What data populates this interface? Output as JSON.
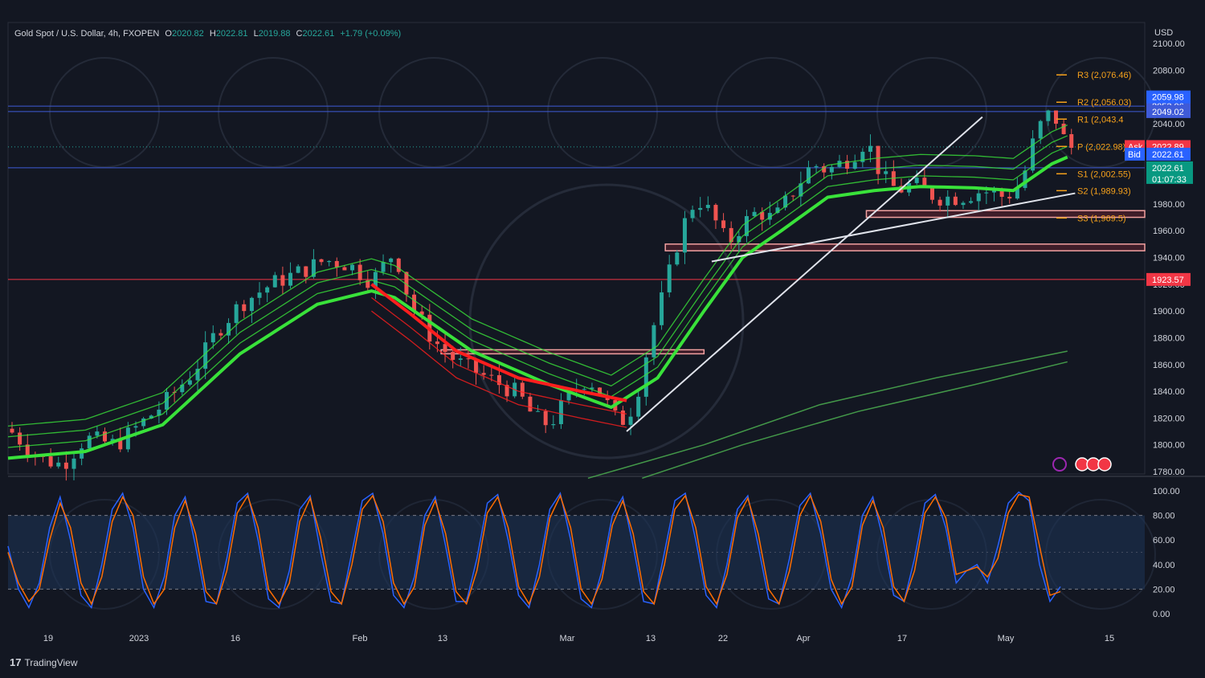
{
  "header": {
    "symbol": "Gold Spot / U.S. Dollar, 4h, FXOPEN",
    "o_label": "O",
    "o_value": "2020.82",
    "h_label": "H",
    "h_value": "2022.81",
    "l_label": "L",
    "l_value": "2019.88",
    "c_label": "C",
    "c_value": "2022.61",
    "change": "+1.79 (+0.09%)"
  },
  "currency": "USD",
  "brand": "TradingView",
  "colors": {
    "bg": "#131722",
    "up": "#26a69a",
    "down": "#ef5350",
    "green_ema": "#39e23a",
    "red_ema": "#ff1e1e",
    "pivot": "#f7a21b",
    "hline_blue": "#3f5bd8",
    "hline_red": "#f23645",
    "stoch_k": "#2962ff",
    "stoch_d": "#ff6d00",
    "stoch_band": "#1d3557"
  },
  "chart_data": [
    {
      "type": "candlestick",
      "title": "Gold Spot / U.S. Dollar, 4h, FXOPEN",
      "ylim": [
        1775,
        2105
      ],
      "y_ticks": [
        "2100.00",
        "2080.00",
        "2060.00",
        "2040.00",
        "2020.00",
        "2000.00",
        "1980.00",
        "1960.00",
        "1940.00",
        "1920.00",
        "1900.00",
        "1880.00",
        "1860.00",
        "1840.00",
        "1820.00",
        "1800.00",
        "1780.00"
      ],
      "x_ticks": [
        "19",
        "2023",
        "16",
        "Feb",
        "13",
        "Mar",
        "13",
        "22",
        "Apr",
        "17",
        "May",
        "15"
      ],
      "price_path": [
        [
          0,
          1812
        ],
        [
          4,
          1790
        ],
        [
          7,
          1785
        ],
        [
          10,
          1805
        ],
        [
          14,
          1800
        ],
        [
          17,
          1815
        ],
        [
          20,
          1830
        ],
        [
          24,
          1855
        ],
        [
          27,
          1885
        ],
        [
          30,
          1905
        ],
        [
          34,
          1920
        ],
        [
          38,
          1930
        ],
        [
          41,
          1938
        ],
        [
          44,
          1935
        ],
        [
          47,
          1922
        ],
        [
          50,
          1945
        ],
        [
          52,
          1905
        ],
        [
          55,
          1878
        ],
        [
          58,
          1862
        ],
        [
          62,
          1850
        ],
        [
          66,
          1838
        ],
        [
          68,
          1820
        ],
        [
          70,
          1815
        ],
        [
          73,
          1840
        ],
        [
          75,
          1850
        ],
        [
          77,
          1835
        ],
        [
          79,
          1815
        ],
        [
          81,
          1830
        ],
        [
          83,
          1880
        ],
        [
          85,
          1918
        ],
        [
          87,
          1960
        ],
        [
          89,
          1985
        ],
        [
          91,
          1972
        ],
        [
          93,
          1950
        ],
        [
          95,
          1965
        ],
        [
          97,
          1975
        ],
        [
          99,
          1968
        ],
        [
          101,
          1985
        ],
        [
          104,
          2010
        ],
        [
          106,
          2005
        ],
        [
          109,
          2015
        ],
        [
          111,
          2028
        ],
        [
          113,
          2000
        ],
        [
          115,
          1990
        ],
        [
          117,
          1995
        ],
        [
          120,
          1985
        ],
        [
          123,
          1985
        ],
        [
          126,
          1990
        ],
        [
          129,
          1985
        ],
        [
          131,
          1995
        ],
        [
          133,
          2035
        ],
        [
          135,
          2050
        ],
        [
          137,
          2022
        ]
      ],
      "green_ema_path": [
        [
          0,
          1790
        ],
        [
          10,
          1795
        ],
        [
          20,
          1815
        ],
        [
          30,
          1868
        ],
        [
          40,
          1905
        ],
        [
          47,
          1915
        ],
        [
          50,
          1910
        ],
        [
          60,
          1870
        ],
        [
          70,
          1845
        ],
        [
          78,
          1828
        ],
        [
          84,
          1850
        ],
        [
          90,
          1900
        ],
        [
          95,
          1940
        ],
        [
          100,
          1960
        ],
        [
          106,
          1985
        ],
        [
          112,
          1990
        ],
        [
          118,
          1993
        ],
        [
          125,
          1992
        ],
        [
          130,
          1990
        ],
        [
          135,
          2010
        ],
        [
          137,
          2015
        ]
      ],
      "red_ema_path": [
        [
          47,
          1920
        ],
        [
          52,
          1898
        ],
        [
          58,
          1870
        ],
        [
          66,
          1850
        ],
        [
          74,
          1840
        ],
        [
          80,
          1833
        ]
      ],
      "sma_paths": [
        [
          [
            75,
            1775
          ],
          [
            90,
            1800
          ],
          [
            105,
            1830
          ],
          [
            120,
            1850
          ],
          [
            137,
            1870
          ]
        ],
        [
          [
            82,
            1775
          ],
          [
            95,
            1800
          ],
          [
            110,
            1825
          ],
          [
            125,
            1845
          ],
          [
            137,
            1862
          ]
        ]
      ],
      "trendlines": [
        {
          "from": [
            80,
            1810
          ],
          "to": [
            126,
            2045
          ]
        },
        {
          "from": [
            91,
            1937
          ],
          "to": [
            138,
            1988
          ]
        }
      ],
      "zones": [
        {
          "x0": 56,
          "x1": 90,
          "y0": 1868,
          "y1": 1871
        },
        {
          "x0": 85,
          "x1": 147,
          "y0": 1945,
          "y1": 1950
        },
        {
          "x0": 111,
          "x1": 147,
          "y0": 1970,
          "y1": 1975
        }
      ],
      "horizontal_lines": [
        {
          "value": 2053.06,
          "label": "2053.06",
          "color": "#3f5bd8"
        },
        {
          "value": 2049.02,
          "label": "2049.02",
          "color": "#3f5bd8"
        },
        {
          "value": 2007.01,
          "label": "2007.01",
          "color": "#3f5bd8"
        },
        {
          "value": 1923.57,
          "label": "1923.57",
          "color": "#f23645"
        }
      ],
      "price_labels": [
        {
          "value": 2059.98,
          "label": "2059.98",
          "color": "#2962ff"
        },
        {
          "value": 2022.89,
          "label": "2022.89",
          "color": "#f23645",
          "tag": "Ask"
        },
        {
          "value": 2022.61,
          "label": "2022.61",
          "color": "#2962ff",
          "tag": "Bid"
        },
        {
          "value": 2022.61,
          "label": "2022.61",
          "color": "#089981",
          "sub": "01:07:33"
        }
      ],
      "pivots": [
        {
          "name": "R3",
          "value": 2076.46,
          "label": "R3 (2,076.46)"
        },
        {
          "name": "R2",
          "value": 2056.03,
          "label": "R2 (2,056.03)"
        },
        {
          "name": "R1",
          "value": 2043.4,
          "label": "R1 (2,043.4"
        },
        {
          "name": "P",
          "value": 2022.98,
          "label": "P (2,022.98)"
        },
        {
          "name": "S1",
          "value": 2002.55,
          "label": "S1 (2,002.55)"
        },
        {
          "name": "S2",
          "value": 1989.93,
          "label": "S2 (1,989.93)"
        },
        {
          "name": "S3",
          "value": 1969.5,
          "label": "S3 (1,969.5)"
        }
      ]
    },
    {
      "type": "line",
      "title": "",
      "ylim": [
        -5,
        105
      ],
      "y_ticks": [
        "100.00",
        "80.00",
        "60.00",
        "40.00",
        "20.00",
        "0.00"
      ],
      "bands": [
        80,
        20
      ],
      "series": [
        {
          "values": [
            55,
            20,
            5,
            25,
            70,
            95,
            60,
            15,
            5,
            40,
            85,
            98,
            70,
            20,
            5,
            30,
            80,
            95,
            55,
            10,
            8,
            45,
            90,
            98,
            60,
            12,
            5,
            35,
            85,
            96,
            50,
            10,
            8,
            50,
            92,
            98,
            65,
            15,
            5,
            30,
            80,
            95,
            55,
            10,
            10,
            45,
            90,
            97,
            60,
            15,
            5,
            40,
            85,
            98,
            60,
            12,
            5,
            35,
            80,
            95,
            55,
            10,
            8,
            50,
            92,
            98,
            60,
            15,
            5,
            40,
            85,
            96,
            55,
            12,
            8,
            45,
            88,
            98,
            65,
            20,
            5,
            30,
            80,
            95,
            60,
            15,
            10,
            45,
            90,
            97,
            70,
            25,
            35,
            40,
            25,
            55,
            90,
            99,
            92,
            40,
            10,
            22
          ]
        },
        {
          "values": [
            50,
            25,
            10,
            20,
            60,
            90,
            70,
            25,
            8,
            30,
            75,
            95,
            80,
            30,
            8,
            20,
            70,
            92,
            65,
            18,
            8,
            35,
            82,
            96,
            70,
            20,
            8,
            25,
            75,
            94,
            62,
            18,
            8,
            40,
            85,
            96,
            75,
            25,
            8,
            22,
            72,
            92,
            65,
            18,
            8,
            35,
            82,
            95,
            70,
            22,
            8,
            30,
            78,
            96,
            70,
            20,
            8,
            28,
            72,
            92,
            65,
            18,
            8,
            40,
            85,
            96,
            70,
            22,
            8,
            32,
            78,
            94,
            65,
            20,
            8,
            35,
            80,
            96,
            75,
            28,
            8,
            22,
            72,
            92,
            70,
            22,
            10,
            35,
            82,
            95,
            78,
            32,
            35,
            38,
            30,
            45,
            82,
            97,
            95,
            55,
            15,
            18
          ]
        }
      ]
    }
  ]
}
